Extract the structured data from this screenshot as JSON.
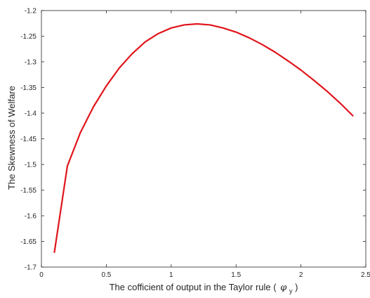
{
  "chart_data": {
    "type": "line",
    "title": "",
    "xlabel": {
      "prefix": "The cofficient of output in the Taylor rule (",
      "symbol": "φ",
      "subscript": "y",
      "suffix": ")"
    },
    "ylabel": "The Skewness of Welfare",
    "xlim": [
      0,
      2.5
    ],
    "ylim": [
      -1.7,
      -1.2
    ],
    "xticks": [
      0,
      0.5,
      1,
      1.5,
      2,
      2.5
    ],
    "xtick_labels": [
      "0",
      "0.5",
      "1",
      "1.5",
      "2",
      "2.5"
    ],
    "yticks": [
      -1.7,
      -1.65,
      -1.6,
      -1.55,
      -1.5,
      -1.45,
      -1.4,
      -1.35,
      -1.3,
      -1.25,
      -1.2
    ],
    "ytick_labels": [
      "-1.7",
      "-1.65",
      "-1.6",
      "-1.55",
      "-1.5",
      "-1.45",
      "-1.4",
      "-1.35",
      "-1.3",
      "-1.25",
      "-1.2"
    ],
    "grid": false,
    "box": true,
    "series": [
      {
        "color": "#e0151b",
        "x": [
          0.1,
          0.2,
          0.3,
          0.4,
          0.5,
          0.6,
          0.7,
          0.8,
          0.9,
          1.0,
          1.1,
          1.2,
          1.3,
          1.4,
          1.5,
          1.6,
          1.7,
          1.8,
          1.9,
          2.0,
          2.1,
          2.2,
          2.3,
          2.4
        ],
        "y": [
          -1.671,
          -1.503,
          -1.438,
          -1.388,
          -1.347,
          -1.312,
          -1.284,
          -1.261,
          -1.245,
          -1.234,
          -1.228,
          -1.226,
          -1.228,
          -1.234,
          -1.242,
          -1.253,
          -1.266,
          -1.281,
          -1.298,
          -1.316,
          -1.336,
          -1.357,
          -1.38,
          -1.405
        ]
      }
    ]
  }
}
